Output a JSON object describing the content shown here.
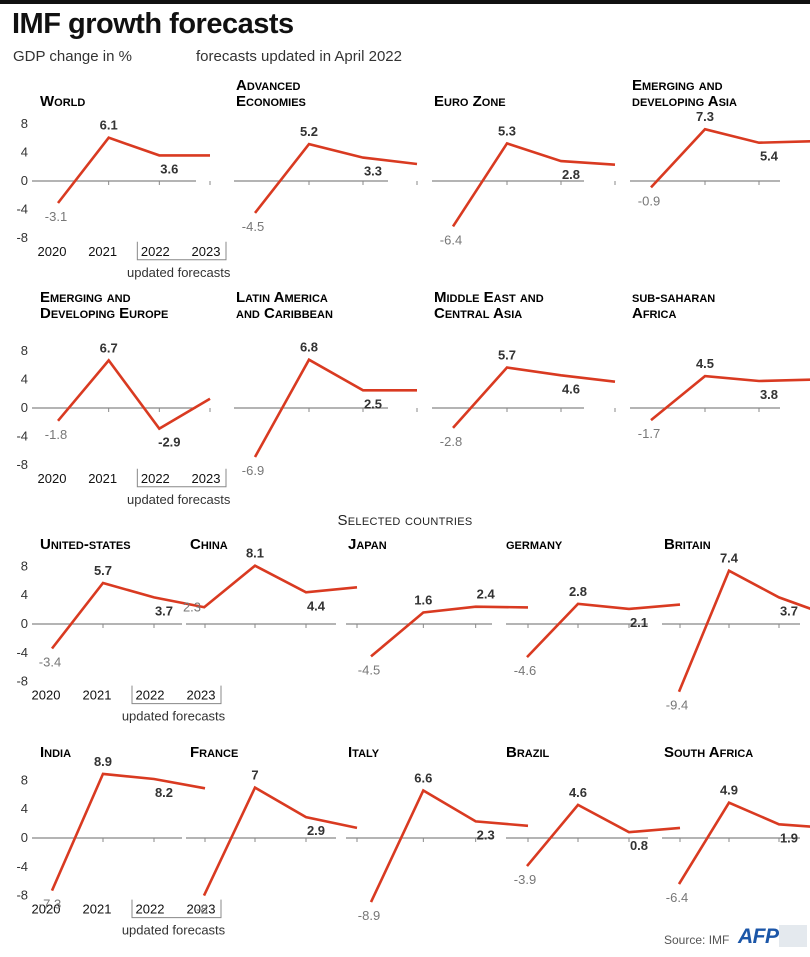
{
  "title": "IMF growth forecasts",
  "subtitle": "GDP change in %",
  "updated_note": "forecasts updated in April 2022",
  "section_label": "Selected countries",
  "source": "Source: IMF",
  "logo": "AFP",
  "colors": {
    "line": "#d93a21",
    "axis": "#888888",
    "grid": "#dddddd"
  },
  "chart_data": [
    {
      "type": "line",
      "title": "World",
      "x": [
        "2020",
        "2021",
        "2022",
        "2023"
      ],
      "values": [
        -3.1,
        6.1,
        3.6,
        3.6
      ],
      "labels": [
        "-3.1",
        "6.1",
        "3.6",
        ""
      ],
      "ylim": [
        -8,
        8
      ],
      "yticks": [
        "8",
        "4",
        "0",
        "-4",
        "-8"
      ],
      "forecast_note": "updated forecasts"
    },
    {
      "type": "line",
      "title": "Advanced Economies",
      "x": [
        "2020",
        "2021",
        "2022",
        "2023"
      ],
      "values": [
        -4.5,
        5.2,
        3.3,
        2.4
      ],
      "labels": [
        "-4.5",
        "5.2",
        "3.3",
        ""
      ],
      "ylim": [
        -8,
        8
      ]
    },
    {
      "type": "line",
      "title": "Euro Zone",
      "x": [
        "2020",
        "2021",
        "2022",
        "2023"
      ],
      "values": [
        -6.4,
        5.3,
        2.8,
        2.3
      ],
      "labels": [
        "-6.4",
        "5.3",
        "2.8",
        ""
      ],
      "ylim": [
        -8,
        8
      ]
    },
    {
      "type": "line",
      "title": "Emerging and developing Asia",
      "x": [
        "2020",
        "2021",
        "2022",
        "2023"
      ],
      "values": [
        -0.9,
        7.3,
        5.4,
        5.6
      ],
      "labels": [
        "-0.9",
        "7.3",
        "5.4",
        ""
      ],
      "ylim": [
        -8,
        8
      ]
    },
    {
      "type": "line",
      "title": "Emerging and Developing Europe",
      "x": [
        "2020",
        "2021",
        "2022",
        "2023"
      ],
      "values": [
        -1.8,
        6.7,
        -2.9,
        1.3
      ],
      "labels": [
        "-1.8",
        "6.7",
        "-2.9",
        ""
      ],
      "ylim": [
        -8,
        8
      ],
      "yticks": [
        "8",
        "4",
        "0",
        "-4",
        "-8"
      ],
      "forecast_note": "updated forecasts"
    },
    {
      "type": "line",
      "title": "Latin America and Caribbean",
      "x": [
        "2020",
        "2021",
        "2022",
        "2023"
      ],
      "values": [
        -6.9,
        6.8,
        2.5,
        2.5
      ],
      "labels": [
        "-6.9",
        "6.8",
        "2.5",
        ""
      ],
      "ylim": [
        -8,
        8
      ]
    },
    {
      "type": "line",
      "title": "Middle East and Central Asia",
      "x": [
        "2020",
        "2021",
        "2022",
        "2023"
      ],
      "values": [
        -2.8,
        5.7,
        4.6,
        3.7
      ],
      "labels": [
        "-2.8",
        "5.7",
        "4.6",
        ""
      ],
      "ylim": [
        -8,
        8
      ]
    },
    {
      "type": "line",
      "title": "sub-saharan Africa",
      "x": [
        "2020",
        "2021",
        "2022",
        "2023"
      ],
      "values": [
        -1.7,
        4.5,
        3.8,
        4.0
      ],
      "labels": [
        "-1.7",
        "4.5",
        "3.8",
        ""
      ],
      "ylim": [
        -8,
        8
      ]
    },
    {
      "type": "line",
      "title": "United-states",
      "x": [
        "2020",
        "2021",
        "2022",
        "2023"
      ],
      "values": [
        -3.4,
        5.7,
        3.7,
        2.3
      ],
      "labels": [
        "-3.4",
        "5.7",
        "3.7",
        ""
      ],
      "ylim": [
        -8,
        8
      ],
      "yticks": [
        "8",
        "4",
        "0",
        "-4",
        "-8"
      ],
      "forecast_note": "updated forecasts"
    },
    {
      "type": "line",
      "title": "China",
      "x": [
        "2020",
        "2021",
        "2022",
        "2023"
      ],
      "values": [
        2.3,
        8.1,
        4.4,
        5.1
      ],
      "labels": [
        "2.3",
        "8.1",
        "4.4",
        ""
      ],
      "ylim": [
        -8,
        8
      ]
    },
    {
      "type": "line",
      "title": "Japan",
      "x": [
        "2020",
        "2021",
        "2022",
        "2023"
      ],
      "values": [
        -4.5,
        1.6,
        2.4,
        2.3
      ],
      "labels": [
        "-4.5",
        "1.6",
        "2.4",
        ""
      ],
      "ylim": [
        -8,
        8
      ]
    },
    {
      "type": "line",
      "title": "germany",
      "x": [
        "2020",
        "2021",
        "2022",
        "2023"
      ],
      "values": [
        -4.6,
        2.8,
        2.1,
        2.7
      ],
      "labels": [
        "-4.6",
        "2.8",
        "2.1",
        ""
      ],
      "ylim": [
        -8,
        8
      ]
    },
    {
      "type": "line",
      "title": "Britain",
      "x": [
        "2020",
        "2021",
        "2022",
        "2023"
      ],
      "values": [
        -9.4,
        7.4,
        3.7,
        1.2
      ],
      "labels": [
        "-9.4",
        "7.4",
        "3.7",
        ""
      ],
      "ylim": [
        -8,
        8
      ]
    },
    {
      "type": "line",
      "title": "India",
      "x": [
        "2020",
        "2021",
        "2022",
        "2023"
      ],
      "values": [
        -7.3,
        8.9,
        8.2,
        6.9
      ],
      "labels": [
        "-7.3",
        "8.9",
        "8.2",
        ""
      ],
      "ylim": [
        -8,
        8
      ],
      "yticks": [
        "8",
        "4",
        "0",
        "-4",
        "-8"
      ],
      "forecast_note": "updated forecasts"
    },
    {
      "type": "line",
      "title": "France",
      "x": [
        "2020",
        "2021",
        "2022",
        "2023"
      ],
      "values": [
        -8.0,
        7.0,
        2.9,
        1.4
      ],
      "labels": [
        "-8",
        "7",
        "2.9",
        ""
      ],
      "ylim": [
        -8,
        8
      ]
    },
    {
      "type": "line",
      "title": "Italy",
      "x": [
        "2020",
        "2021",
        "2022",
        "2023"
      ],
      "values": [
        -8.9,
        6.6,
        2.3,
        1.7
      ],
      "labels": [
        "-8.9",
        "6.6",
        "2.3",
        ""
      ],
      "ylim": [
        -8,
        8
      ]
    },
    {
      "type": "line",
      "title": "Brazil",
      "x": [
        "2020",
        "2021",
        "2022",
        "2023"
      ],
      "values": [
        -3.9,
        4.6,
        0.8,
        1.4
      ],
      "labels": [
        "-3.9",
        "4.6",
        "0.8",
        ""
      ],
      "ylim": [
        -8,
        8
      ]
    },
    {
      "type": "line",
      "title": "South Africa",
      "x": [
        "2020",
        "2021",
        "2022",
        "2023"
      ],
      "values": [
        -6.4,
        4.9,
        1.9,
        1.4
      ],
      "labels": [
        "-6.4",
        "4.9",
        "1.9",
        ""
      ],
      "ylim": [
        -8,
        8
      ]
    }
  ]
}
